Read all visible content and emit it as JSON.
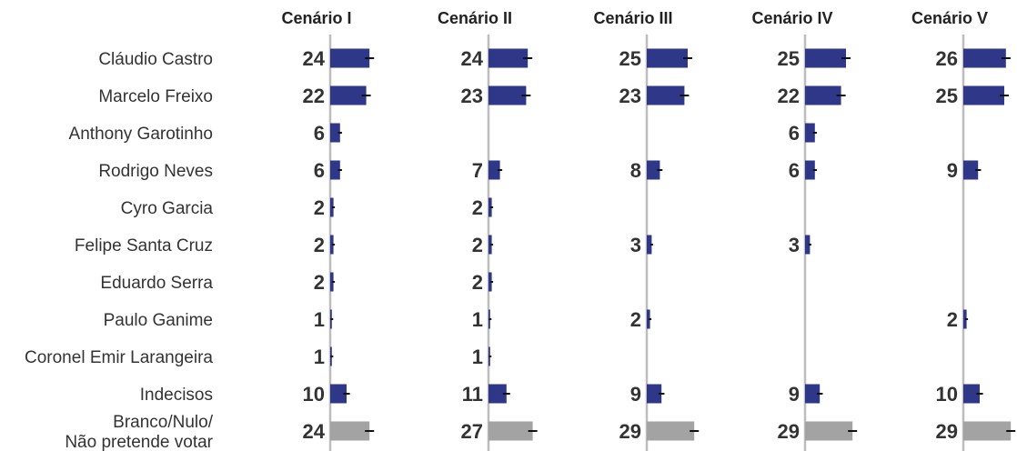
{
  "chart_data": {
    "type": "bar",
    "orientation": "horizontal",
    "categories": [
      "Cláudio Castro",
      "Marcelo Freixo",
      "Anthony Garotinho",
      "Rodrigo Neves",
      "Cyro Garcia",
      "Felipe Santa Cruz",
      "Eduardo Serra",
      "Paulo Ganime",
      "Coronel Emir Larangeira",
      "Indecisos",
      [
        "Branco/Nulo/",
        "Não pretende votar"
      ]
    ],
    "series": [
      {
        "name": "Cenário I",
        "values": [
          24,
          22,
          6,
          6,
          2,
          2,
          2,
          1,
          1,
          10,
          24
        ]
      },
      {
        "name": "Cenário II",
        "values": [
          24,
          23,
          null,
          7,
          2,
          2,
          2,
          1,
          1,
          11,
          27
        ]
      },
      {
        "name": "Cenário III",
        "values": [
          25,
          23,
          null,
          8,
          null,
          3,
          null,
          2,
          null,
          9,
          29
        ]
      },
      {
        "name": "Cenário IV",
        "values": [
          25,
          22,
          6,
          6,
          null,
          3,
          null,
          null,
          null,
          9,
          29
        ]
      },
      {
        "name": "Cenário V",
        "values": [
          26,
          25,
          null,
          9,
          null,
          null,
          null,
          2,
          null,
          10,
          29
        ]
      }
    ],
    "grey_rows": [
      10
    ],
    "colors": {
      "bar": "#2e3788",
      "bar_grey": "#a3a3a3",
      "axis": "#bdbdbd",
      "error": "#111111"
    },
    "error_bar": true,
    "grid": false,
    "legend": "none"
  }
}
